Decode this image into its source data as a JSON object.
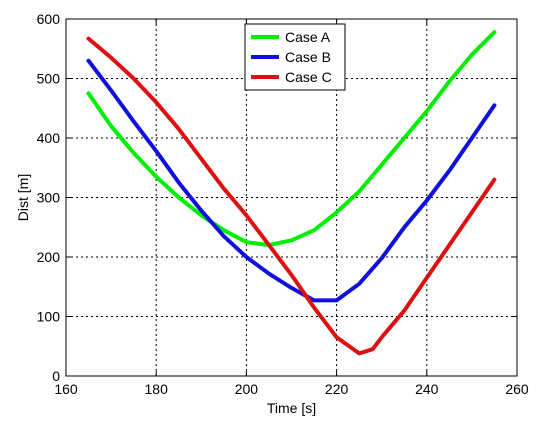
{
  "chart_data": {
    "type": "line",
    "xlabel": "Time [s]",
    "ylabel": "Dist [m]",
    "xlim": [
      160,
      260
    ],
    "ylim": [
      0,
      600
    ],
    "xticks": [
      160,
      180,
      200,
      220,
      240,
      260
    ],
    "yticks": [
      0,
      100,
      200,
      300,
      400,
      500,
      600
    ],
    "grid": true,
    "legend_position": "top-center",
    "series": [
      {
        "name": "Case A",
        "color": "#00ee00",
        "x": [
          165,
          170,
          175,
          180,
          185,
          190,
          195,
          200,
          205,
          210,
          215,
          220,
          225,
          230,
          235,
          240,
          245,
          250,
          255
        ],
        "y": [
          475,
          420,
          375,
          335,
          300,
          270,
          245,
          225,
          220,
          228,
          245,
          275,
          310,
          355,
          400,
          445,
          495,
          540,
          578
        ]
      },
      {
        "name": "Case B",
        "color": "#1010dd",
        "x": [
          165,
          170,
          175,
          180,
          185,
          190,
          195,
          200,
          205,
          210,
          215,
          220,
          225,
          230,
          235,
          240,
          245,
          250,
          255
        ],
        "y": [
          530,
          480,
          428,
          378,
          325,
          278,
          235,
          200,
          172,
          148,
          127,
          127,
          155,
          198,
          250,
          295,
          345,
          400,
          455
        ]
      },
      {
        "name": "Case C",
        "color": "#dd1010",
        "x": [
          165,
          170,
          175,
          180,
          185,
          190,
          195,
          200,
          205,
          210,
          215,
          220,
          225,
          228,
          230,
          235,
          240,
          245,
          250,
          255
        ],
        "y": [
          567,
          535,
          500,
          460,
          415,
          365,
          315,
          270,
          220,
          170,
          115,
          65,
          38,
          45,
          65,
          110,
          165,
          220,
          275,
          330
        ]
      }
    ]
  }
}
